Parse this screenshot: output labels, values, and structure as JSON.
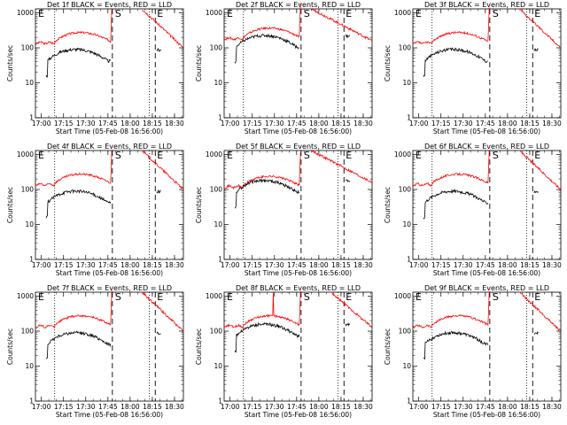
{
  "chart_data": {
    "type": "line",
    "x_ticks": [
      "17:00",
      "17:15",
      "17:30",
      "17:45",
      "18:00",
      "18:15",
      "18:30"
    ],
    "x_range": [
      "16:56:00",
      "18:36:00"
    ],
    "ylabel": "Counts/sec",
    "xlabel": "Start Time (05-Feb-08 16:56:00)",
    "y_ticks": [
      "1",
      "10",
      "100",
      "1000"
    ],
    "yscale": "log",
    "ylim": [
      1,
      1300
    ],
    "series_colors": {
      "events": "#000000",
      "lld": "#ff0000"
    },
    "markers": {
      "E": "E",
      "S": "S"
    },
    "reference_lines": {
      "dotted": [
        "17:09",
        "18:13"
      ],
      "dashed": [
        "17:48",
        "18:17"
      ]
    },
    "panels": [
      {
        "title": "Det 1f BLACK = Events, RED = LLD",
        "lld_base": 150,
        "ev_base": 40,
        "flare": 1,
        "peak": 0
      },
      {
        "title": "Det 2f BLACK = Events, RED = LLD",
        "lld_base": 200,
        "ev_base": 100,
        "flare": 1.4,
        "peak": 1
      },
      {
        "title": "Det 3f BLACK = Events, RED = LLD",
        "lld_base": 150,
        "ev_base": 40,
        "flare": 1,
        "peak": 0
      },
      {
        "title": "Det 4f BLACK = Events, RED = LLD",
        "lld_base": 150,
        "ev_base": 40,
        "flare": 1,
        "peak": 0
      },
      {
        "title": "Det 5f BLACK = Events, RED = LLD",
        "lld_base": 130,
        "ev_base": 80,
        "flare": 1.4,
        "peak": 1
      },
      {
        "title": "Det 6f BLACK = Events, RED = LLD",
        "lld_base": 150,
        "ev_base": 40,
        "flare": 1,
        "peak": 0
      },
      {
        "title": "Det 7f BLACK = Events, RED = LLD",
        "lld_base": 150,
        "ev_base": 40,
        "flare": 1,
        "peak": 0
      },
      {
        "title": "Det 8f BLACK = Events, RED = LLD",
        "lld_base": 150,
        "ev_base": 70,
        "flare": 1.2,
        "peak": 0,
        "spikes": true
      },
      {
        "title": "Det 9f BLACK = Events, RED = LLD",
        "lld_base": 150,
        "ev_base": 40,
        "flare": 1,
        "peak": 0
      }
    ]
  }
}
